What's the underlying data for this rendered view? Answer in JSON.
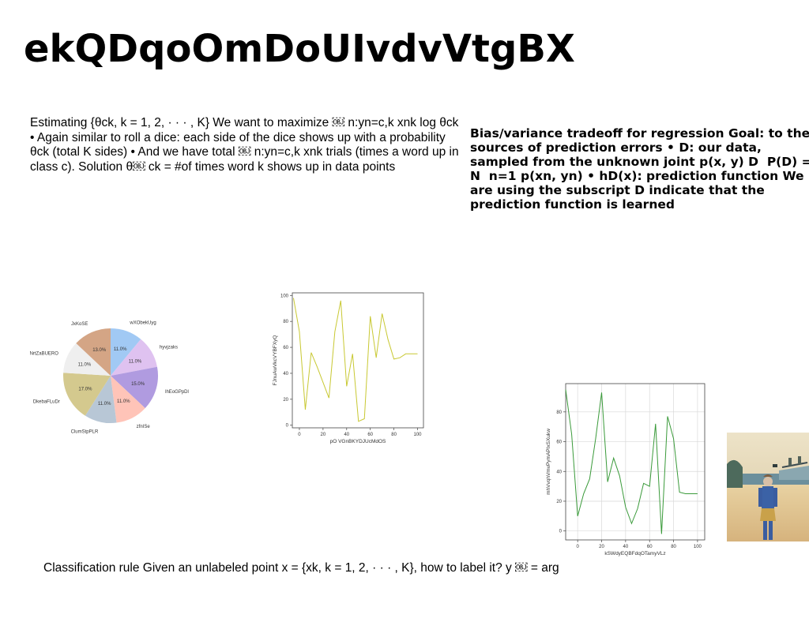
{
  "slide": {
    "title": "ekQDqoOmDoUIvdvVtgBX",
    "left_text": "Estimating {θck, k = 1, 2, · · · , K} We want to maximize ￼ n:yn=c,k xnk log θck • Again similar to roll a dice: each side of the dice shows up with a probability θck (total K sides) • And we have total ￼ n:yn=c,k xnk trials (times a word up in class c). Solution θ￼ ck = #of times word k shows up in data points",
    "right_text": "Bias/variance tradeoff for regression Goal: to the sources of prediction errors • D: our data, sampled from the unknown joint p(x, y) D ￼ P(D) = N ￼ n=1 p(xn, yn) • hD(x): prediction function We are using the subscript D indicate that the prediction function is learned",
    "bottom_text": "Classification rule Given an unlabeled point x = {xk, k = 1, 2, · · · , K}, how to label it? y ￼ = arg"
  },
  "chart_data": [
    {
      "type": "pie",
      "labels": [
        "wXObekUyg",
        "hyvjzaks",
        "lhEoGPpDl",
        "zfnISe",
        "ClumStpPLR",
        "DkebaFLuDr",
        "NrtZaBUERO",
        "JxKoSE"
      ],
      "values": [
        11.0,
        11.0,
        15.0,
        11.0,
        11.0,
        17.0,
        11.0,
        13.0
      ],
      "value_labels": [
        "11.0%",
        "11.0%",
        "15.0%",
        "11.0%",
        "11.0%",
        "17.0%",
        "11.0%",
        "13.0%"
      ],
      "colors": [
        "#a1c9f4",
        "#debb9b",
        "#b09be0",
        "#ffc4b8",
        "#b8c7d6",
        "#d4c98e",
        "#efefef",
        "#d4a585"
      ],
      "slice_colors": [
        "#a1c9f4",
        "#dfc2f0",
        "#b09be0",
        "#ffc4b8",
        "#b8c7d6",
        "#d4c98e",
        "#efefef",
        "#d4a585"
      ]
    },
    {
      "type": "line",
      "xlabel": "pO VGnBKYDJUcMdOS",
      "ylabel": "FJnuAwVkcVYBFXyQ",
      "xticks": [
        0,
        20,
        40,
        60,
        80,
        100
      ],
      "yticks": [
        0,
        20,
        40,
        60,
        80,
        100
      ],
      "xlim": [
        -6,
        105
      ],
      "ylim": [
        -2,
        102
      ],
      "grid": false,
      "color": "#c8c832",
      "x": [
        -5,
        0,
        5,
        10,
        15,
        20,
        25,
        30,
        35,
        40,
        45,
        50,
        55,
        60,
        65,
        70,
        75,
        80,
        85,
        90,
        95,
        100
      ],
      "y": [
        98,
        72,
        12,
        56,
        45,
        33,
        21,
        72,
        96,
        30,
        55,
        3,
        5,
        84,
        52,
        86,
        66,
        51,
        52,
        55,
        55,
        55
      ]
    },
    {
      "type": "line",
      "xlabel": "kSWdyEQBFdqOTamyVLz",
      "ylabel": "mhVvqhVmvPymAPIxSXukw",
      "xticks": [
        0,
        20,
        40,
        60,
        80,
        100
      ],
      "yticks": [
        0,
        20,
        40,
        60,
        80
      ],
      "xlim": [
        -10,
        106
      ],
      "ylim": [
        -6,
        99
      ],
      "grid": true,
      "color": "#3a9a3a",
      "x": [
        -10,
        -5,
        0,
        5,
        10,
        15,
        20,
        25,
        30,
        35,
        40,
        45,
        50,
        55,
        60,
        65,
        70,
        75,
        80,
        85,
        90,
        95,
        100
      ],
      "y": [
        95,
        65,
        10,
        25,
        35,
        62,
        93,
        33,
        49,
        37,
        16,
        5,
        15,
        32,
        30,
        72,
        -2,
        77,
        62,
        26,
        25,
        25,
        25
      ]
    }
  ]
}
